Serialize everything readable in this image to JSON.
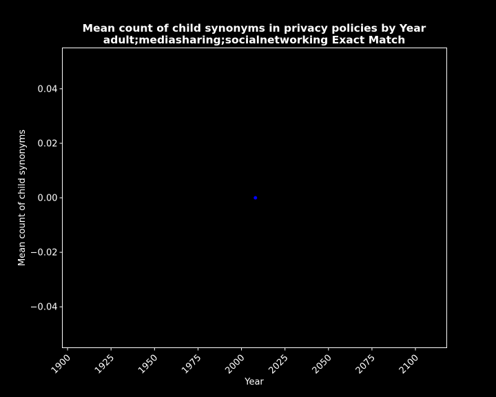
{
  "chart_data": {
    "type": "scatter",
    "title": "Mean count of child synonyms in privacy policies by Year",
    "subtitle": "adult;mediasharing;socialnetworking Exact Match",
    "xlabel": "Year",
    "ylabel": "Mean count of child synonyms",
    "xlim": [
      1897,
      2118
    ],
    "ylim": [
      -0.055,
      0.055
    ],
    "xticks": [
      1900,
      1925,
      1950,
      1975,
      2000,
      2025,
      2050,
      2075,
      2100
    ],
    "yticks": [
      -0.04,
      -0.02,
      0.0,
      0.02,
      0.04
    ],
    "ytick_labels": [
      "−0.04",
      "−0.02",
      "0.00",
      "0.02",
      "0.04"
    ],
    "grid": false,
    "background": "#000000",
    "foreground": "#ffffff",
    "points": [
      {
        "x": 2008,
        "y": 0.0
      }
    ],
    "marker_color": "#0000ff"
  }
}
